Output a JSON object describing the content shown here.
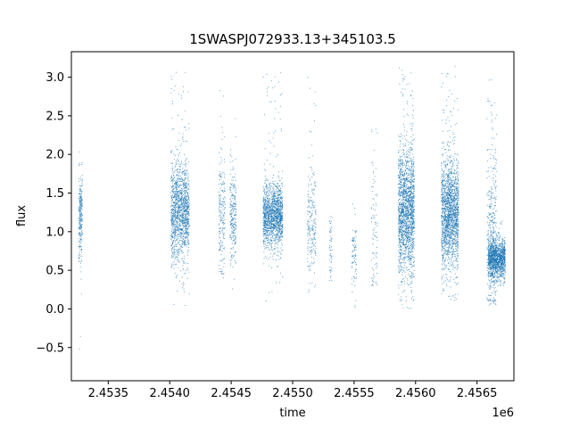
{
  "chart_data": {
    "type": "scatter",
    "title": "1SWASPJ072933.13+345103.5",
    "xlabel": "time",
    "ylabel": "flux",
    "x_offset_label": "1e6",
    "xlim": [
      2453200,
      2456800
    ],
    "ylim": [
      -0.93,
      3.33
    ],
    "grid": false,
    "point_color": "#1f77b4",
    "x_ticks": [
      2453500,
      2454000,
      2454500,
      2455000,
      2455500,
      2456000,
      2456500
    ],
    "x_tick_labels": [
      "2.4535",
      "2.4540",
      "2.4545",
      "2.4550",
      "2.4555",
      "2.4560",
      "2.4565"
    ],
    "y_ticks": [
      -0.5,
      0.0,
      0.5,
      1.0,
      1.5,
      2.0,
      2.5,
      3.0
    ],
    "y_tick_labels": [
      "−0.5",
      "0.0",
      "0.5",
      "1.0",
      "1.5",
      "2.0",
      "2.5",
      "3.0"
    ],
    "clusters": [
      {
        "x_start": 2453260,
        "x_end": 2453290,
        "center": 1.2,
        "spread": 0.28,
        "min": -0.72,
        "max": 2.42,
        "n": 260
      },
      {
        "x_start": 2454010,
        "x_end": 2454160,
        "center": 1.25,
        "spread": 0.32,
        "min": 0.0,
        "max": 3.1,
        "n": 1400
      },
      {
        "x_start": 2454400,
        "x_end": 2454450,
        "center": 1.2,
        "spread": 0.4,
        "min": 0.4,
        "max": 3.05,
        "n": 200
      },
      {
        "x_start": 2454490,
        "x_end": 2454540,
        "center": 1.2,
        "spread": 0.3,
        "min": 0.2,
        "max": 2.7,
        "n": 250
      },
      {
        "x_start": 2454760,
        "x_end": 2454920,
        "center": 1.2,
        "spread": 0.2,
        "min": 0.1,
        "max": 3.1,
        "n": 1500
      },
      {
        "x_start": 2455120,
        "x_end": 2455190,
        "center": 1.1,
        "spread": 0.35,
        "min": 0.2,
        "max": 3.05,
        "n": 220
      },
      {
        "x_start": 2455300,
        "x_end": 2455320,
        "center": 0.75,
        "spread": 0.25,
        "min": 0.3,
        "max": 1.2,
        "n": 50
      },
      {
        "x_start": 2455480,
        "x_end": 2455520,
        "center": 0.7,
        "spread": 0.25,
        "min": 0.0,
        "max": 1.4,
        "n": 80
      },
      {
        "x_start": 2455640,
        "x_end": 2455690,
        "center": 1.0,
        "spread": 0.5,
        "min": 0.3,
        "max": 2.4,
        "n": 90
      },
      {
        "x_start": 2455860,
        "x_end": 2455990,
        "center": 1.3,
        "spread": 0.4,
        "min": 0.0,
        "max": 3.15,
        "n": 1800
      },
      {
        "x_start": 2456210,
        "x_end": 2456350,
        "center": 1.25,
        "spread": 0.35,
        "min": 0.1,
        "max": 3.15,
        "n": 1800
      },
      {
        "x_start": 2456580,
        "x_end": 2456660,
        "center": 1.0,
        "spread": 0.6,
        "min": 0.05,
        "max": 3.15,
        "n": 350
      },
      {
        "x_start": 2456590,
        "x_end": 2456730,
        "center": 0.65,
        "spread": 0.12,
        "min": 0.2,
        "max": 1.15,
        "n": 1300
      }
    ]
  }
}
